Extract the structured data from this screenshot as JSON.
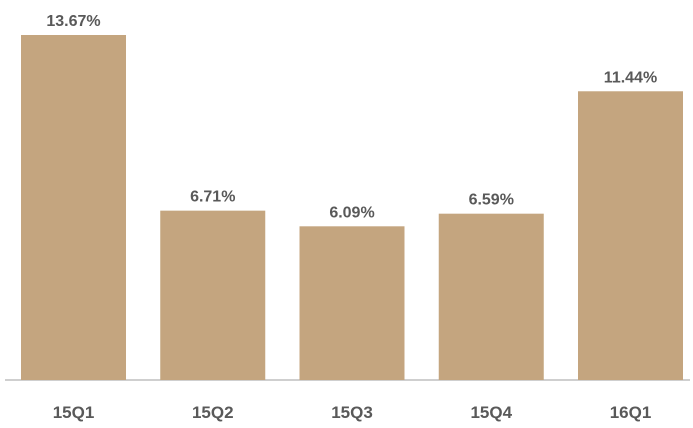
{
  "chart_data": {
    "type": "bar",
    "categories": [
      "15Q1",
      "15Q2",
      "15Q3",
      "15Q4",
      "16Q1"
    ],
    "values": [
      13.67,
      6.71,
      6.09,
      6.59,
      11.44
    ],
    "data_labels": [
      "13.67%",
      "6.71%",
      "6.09%",
      "6.59%",
      "11.44%"
    ],
    "title": "",
    "xlabel": "",
    "ylabel": "",
    "ylim": [
      0,
      13.67
    ],
    "grid": false,
    "legend": "none",
    "colors": {
      "bar": "#c4a57f",
      "text": "#595959",
      "axis": "#bfbfbf"
    }
  }
}
